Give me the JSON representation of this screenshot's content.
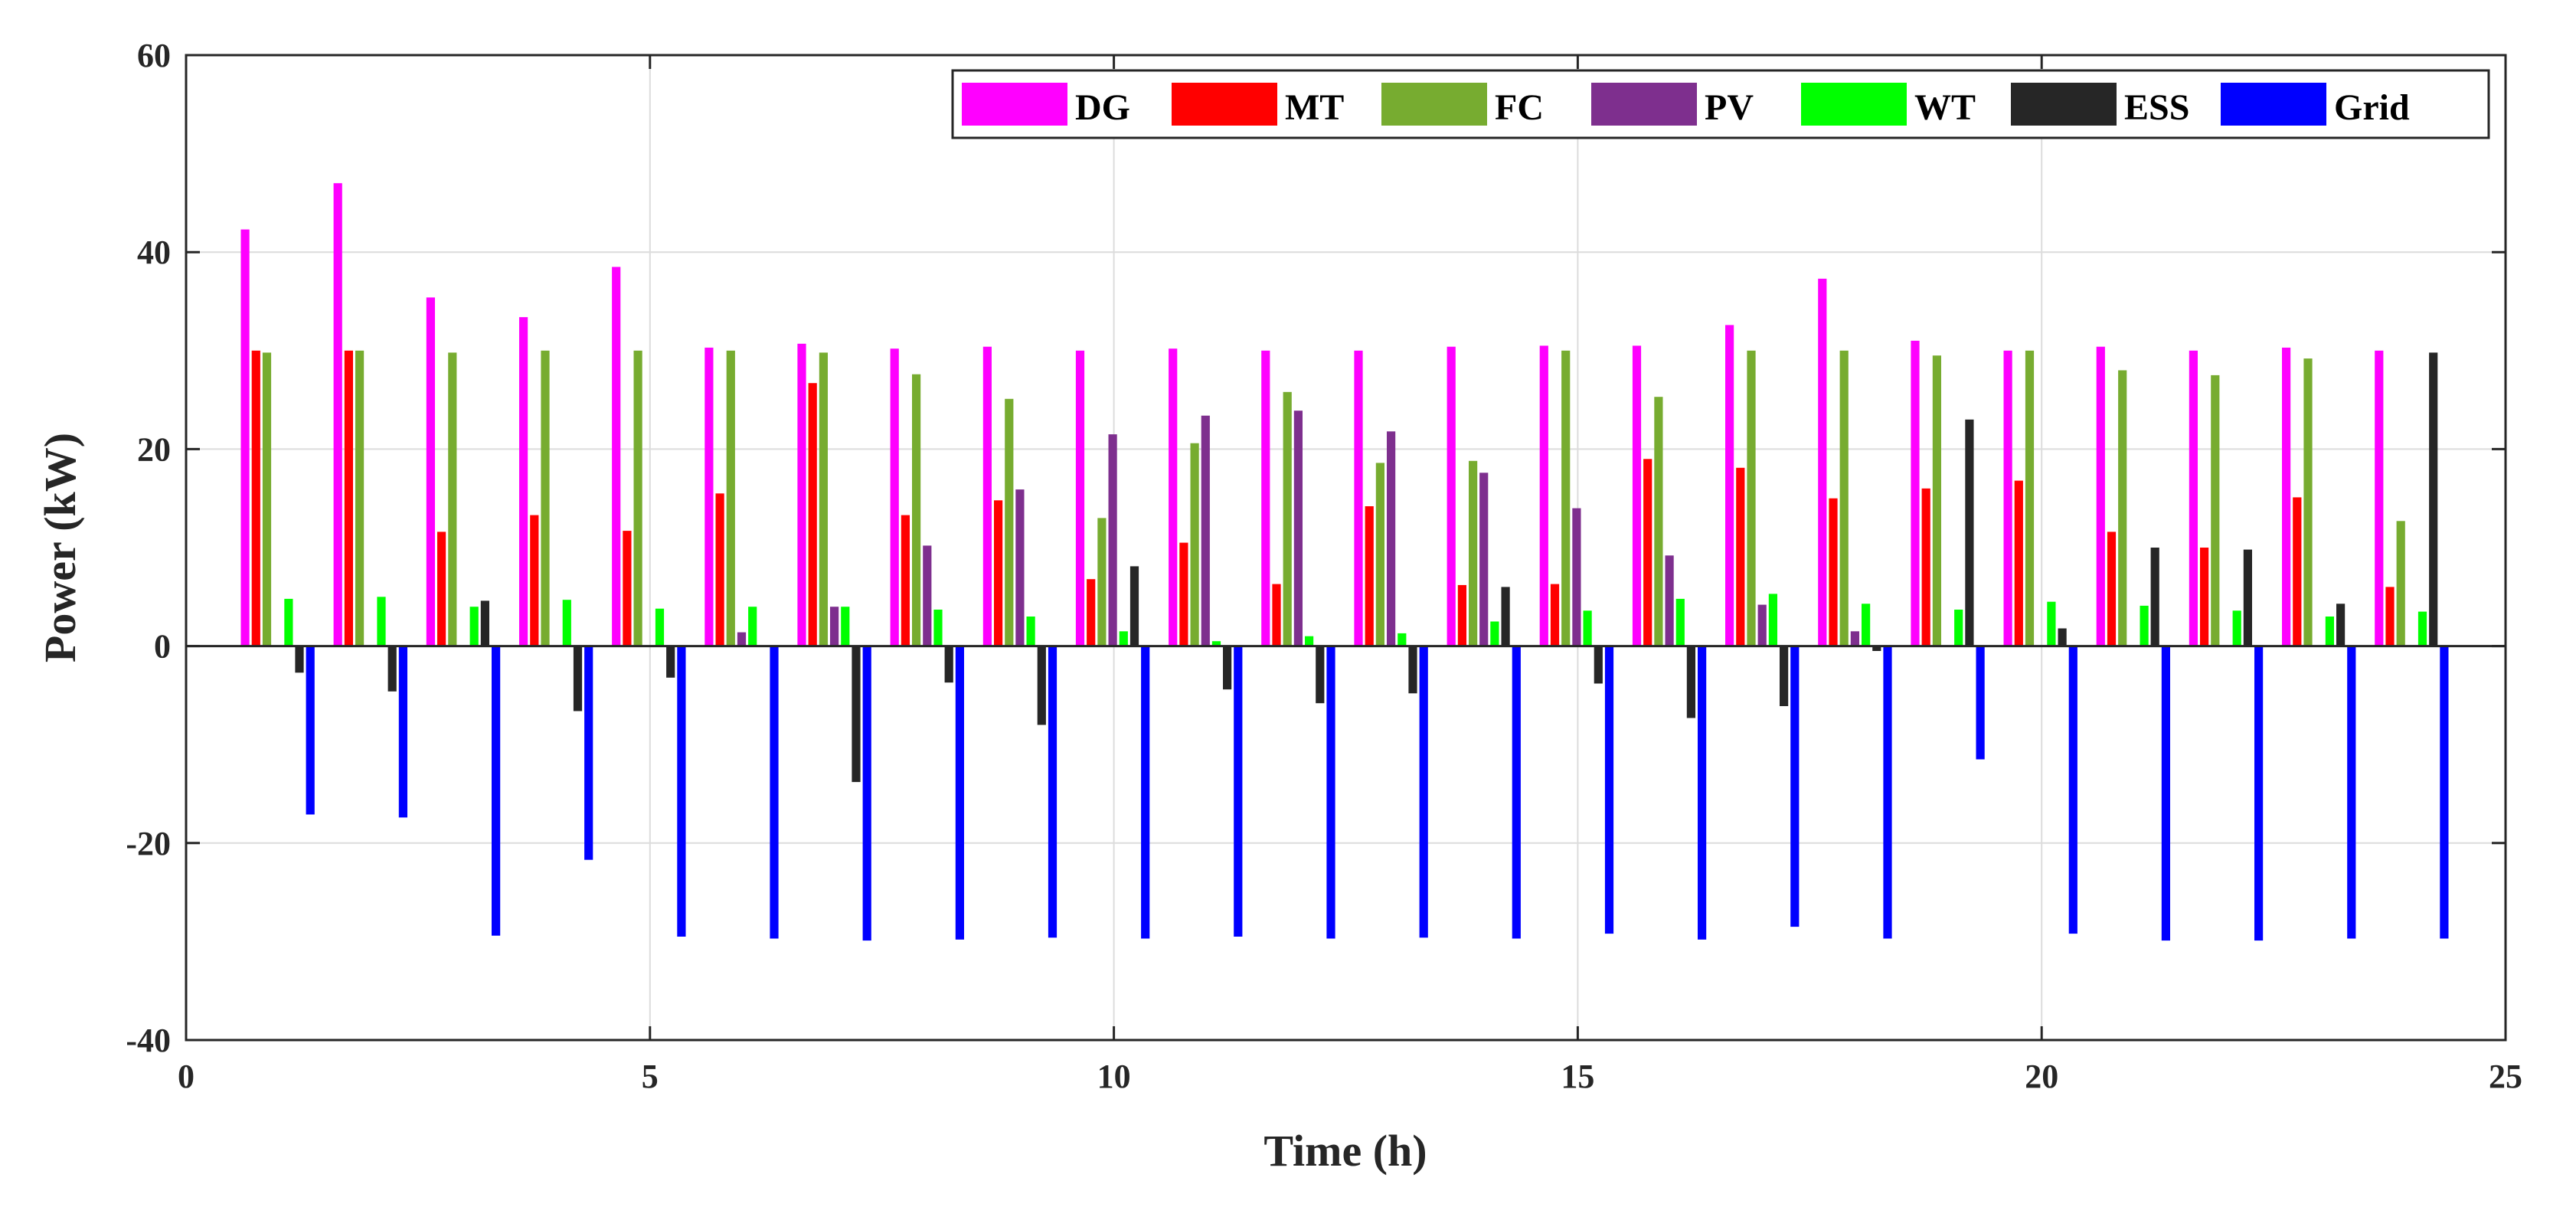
{
  "chart_data": {
    "type": "bar",
    "title": "",
    "xlabel": "Time (h)",
    "ylabel": "Power (kW)",
    "xlim": [
      0,
      25
    ],
    "ylim": [
      -40,
      60
    ],
    "xticks": [
      0,
      5,
      10,
      15,
      20,
      25
    ],
    "yticks": [
      -40,
      -20,
      0,
      20,
      40,
      60
    ],
    "x_tick_labels": [
      "0",
      "5",
      "10",
      "15",
      "20",
      "25"
    ],
    "y_tick_labels": [
      "-40",
      "-20",
      "0",
      "20",
      "40",
      "60"
    ],
    "grid": true,
    "legend_position": "top-right",
    "legend_orientation": "horizontal",
    "categories": [
      1,
      2,
      3,
      4,
      5,
      6,
      7,
      8,
      9,
      10,
      11,
      12,
      13,
      14,
      15,
      16,
      17,
      18,
      19,
      20,
      21,
      22,
      23,
      24
    ],
    "series": [
      {
        "name": "DG",
        "color": "#FF00FF",
        "values": [
          42.3,
          47.0,
          35.4,
          33.4,
          38.5,
          30.3,
          30.7,
          30.2,
          30.4,
          30.0,
          30.2,
          30.0,
          30.0,
          30.4,
          30.5,
          30.5,
          32.6,
          37.3,
          31.0,
          30.0,
          30.4,
          30.0,
          30.3,
          30.0
        ]
      },
      {
        "name": "MT",
        "color": "#FF0000",
        "values": [
          30.0,
          30.0,
          11.6,
          13.3,
          11.7,
          15.5,
          26.7,
          13.3,
          14.8,
          6.8,
          10.5,
          6.3,
          14.2,
          6.2,
          6.3,
          19.0,
          18.1,
          15.0,
          16.0,
          16.8,
          11.6,
          10.0,
          15.1,
          6.0
        ]
      },
      {
        "name": "FC",
        "color": "#77AC30",
        "values": [
          29.8,
          30.0,
          29.8,
          30.0,
          30.0,
          30.0,
          29.8,
          27.6,
          25.1,
          13.0,
          20.6,
          25.8,
          18.6,
          18.8,
          30.0,
          25.3,
          30.0,
          30.0,
          29.5,
          30.0,
          28.0,
          27.5,
          29.2,
          12.7
        ]
      },
      {
        "name": "PV",
        "color": "#7E2F8E",
        "values": [
          0,
          0,
          0,
          0,
          0,
          1.4,
          4.0,
          10.2,
          15.9,
          21.5,
          23.4,
          23.9,
          21.8,
          17.6,
          14.0,
          9.2,
          4.2,
          1.5,
          0,
          0,
          0,
          0,
          0,
          0
        ]
      },
      {
        "name": "WT",
        "color": "#00FF00",
        "values": [
          4.8,
          5.0,
          4.0,
          4.7,
          3.8,
          4.0,
          4.0,
          3.7,
          3.0,
          1.5,
          0.5,
          1.0,
          1.3,
          2.5,
          3.6,
          4.8,
          5.3,
          4.3,
          3.7,
          4.5,
          4.1,
          3.6,
          3.0,
          3.5
        ]
      },
      {
        "name": "ESS",
        "color": "#262626",
        "values": [
          -2.7,
          -4.6,
          4.6,
          -6.6,
          -3.2,
          0,
          -13.8,
          -3.7,
          -8.0,
          8.1,
          -4.4,
          -5.8,
          -4.8,
          6.0,
          -3.8,
          -7.3,
          -6.1,
          -0.5,
          23.0,
          1.8,
          10.0,
          9.8,
          4.3,
          29.8
        ]
      },
      {
        "name": "Grid",
        "color": "#0000FF",
        "values": [
          -17.1,
          -17.4,
          -29.4,
          -21.7,
          -29.5,
          -29.7,
          -29.9,
          -29.8,
          -29.6,
          -29.7,
          -29.5,
          -29.7,
          -29.6,
          -29.7,
          -29.2,
          -29.8,
          -28.5,
          -29.7,
          -11.5,
          -29.2,
          -29.9,
          -29.9,
          -29.7,
          -29.7
        ]
      }
    ]
  }
}
